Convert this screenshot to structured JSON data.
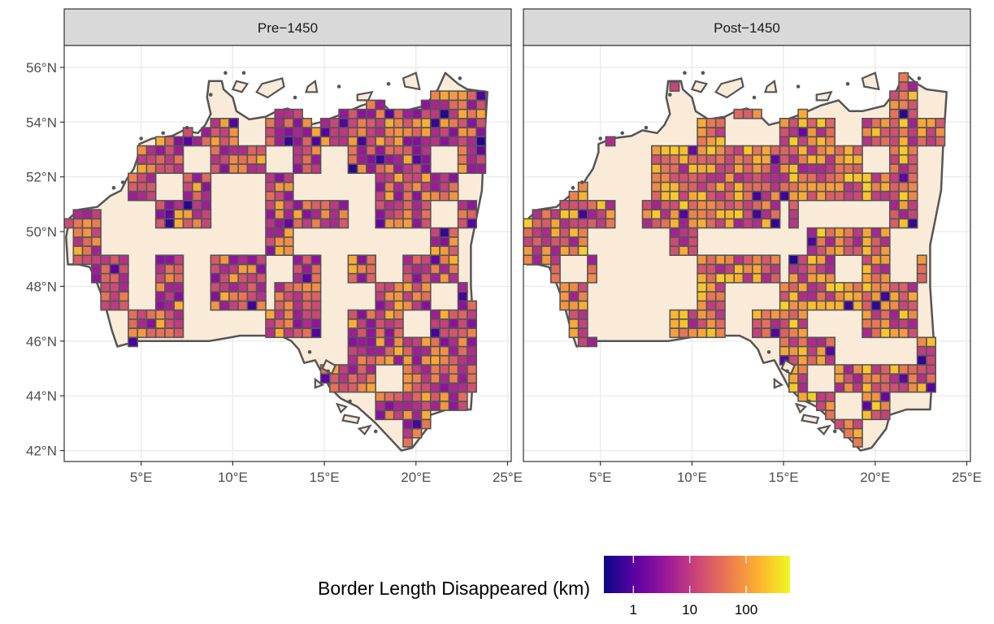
{
  "map": {
    "type": "faceted choropleth grid map",
    "region_outline_color": "#555555",
    "land_fill": "#FAEBD9",
    "panel_border_color": "#333333",
    "strip_fill": "#D9D9D9",
    "grid_color": "#EBEBEB",
    "lon_range": [
      0.8,
      25.2
    ],
    "lat_range": [
      41.6,
      56.8
    ],
    "x_ticks": [
      {
        "value": 5,
        "label": "5°E"
      },
      {
        "value": 10,
        "label": "10°E"
      },
      {
        "value": 15,
        "label": "15°E"
      },
      {
        "value": 20,
        "label": "20°E"
      },
      {
        "value": 25,
        "label": "25°E"
      }
    ],
    "y_ticks": [
      {
        "value": 42,
        "label": "42°N"
      },
      {
        "value": 44,
        "label": "44°N"
      },
      {
        "value": 46,
        "label": "46°N"
      },
      {
        "value": 48,
        "label": "48°N"
      },
      {
        "value": 50,
        "label": "50°N"
      },
      {
        "value": 52,
        "label": "52°N"
      },
      {
        "value": 54,
        "label": "54°N"
      },
      {
        "value": 56,
        "label": "56°N"
      }
    ],
    "panels": [
      {
        "title": "Pre−1450"
      },
      {
        "title": "Post−1450"
      }
    ]
  },
  "legend": {
    "title": "Border Length Disappeared (km)",
    "scale": "log10",
    "palette": [
      "#0D0887",
      "#5B02A3",
      "#9A179B",
      "#CB4678",
      "#EB7852",
      "#FBB32F",
      "#F0F921"
    ],
    "domain": [
      0.3,
      600
    ],
    "ticks": [
      {
        "value": 1,
        "label": "1"
      },
      {
        "value": 10,
        "label": "10"
      },
      {
        "value": 100,
        "label": "100"
      }
    ]
  }
}
